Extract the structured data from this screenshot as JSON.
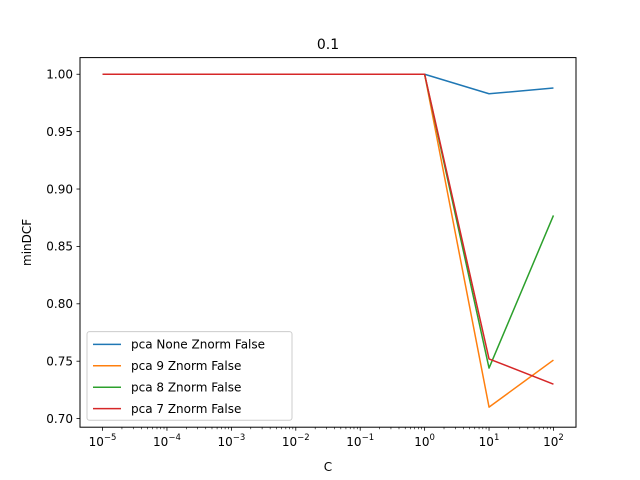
{
  "chart_data": {
    "type": "line",
    "title": "0.1",
    "xlabel": "C",
    "ylabel": "minDCF",
    "xscale": "log",
    "x": [
      1e-05,
      0.0001,
      0.001,
      0.01,
      0.1,
      1,
      10,
      100
    ],
    "xticks": [
      {
        "value": 1e-05,
        "base": "10",
        "exp": "−5"
      },
      {
        "value": 0.0001,
        "base": "10",
        "exp": "−4"
      },
      {
        "value": 0.001,
        "base": "10",
        "exp": "−3"
      },
      {
        "value": 0.01,
        "base": "10",
        "exp": "−2"
      },
      {
        "value": 0.1,
        "base": "10",
        "exp": "−1"
      },
      {
        "value": 1,
        "base": "10",
        "exp": "0"
      },
      {
        "value": 10,
        "base": "10",
        "exp": "1"
      },
      {
        "value": 100,
        "base": "10",
        "exp": "2"
      }
    ],
    "yticks": [
      "0.70",
      "0.75",
      "0.80",
      "0.85",
      "0.90",
      "0.95",
      "1.00"
    ],
    "ylim": [
      0.6925,
      1.0145
    ],
    "grid": false,
    "legend_position": "lower-left",
    "series": [
      {
        "name": "pca None Znorm False",
        "color": "#1f77b4",
        "values": [
          1.0,
          1.0,
          1.0,
          1.0,
          1.0,
          1.0,
          0.983,
          0.988
        ]
      },
      {
        "name": "pca 9 Znorm False",
        "color": "#ff7f0e",
        "values": [
          1.0,
          1.0,
          1.0,
          1.0,
          1.0,
          1.0,
          0.71,
          0.751
        ]
      },
      {
        "name": "pca 8 Znorm False",
        "color": "#2ca02c",
        "values": [
          1.0,
          1.0,
          1.0,
          1.0,
          1.0,
          1.0,
          0.744,
          0.877
        ]
      },
      {
        "name": "pca 7 Znorm False",
        "color": "#d62728",
        "values": [
          1.0,
          1.0,
          1.0,
          1.0,
          1.0,
          1.0,
          0.752,
          0.73
        ]
      }
    ]
  }
}
